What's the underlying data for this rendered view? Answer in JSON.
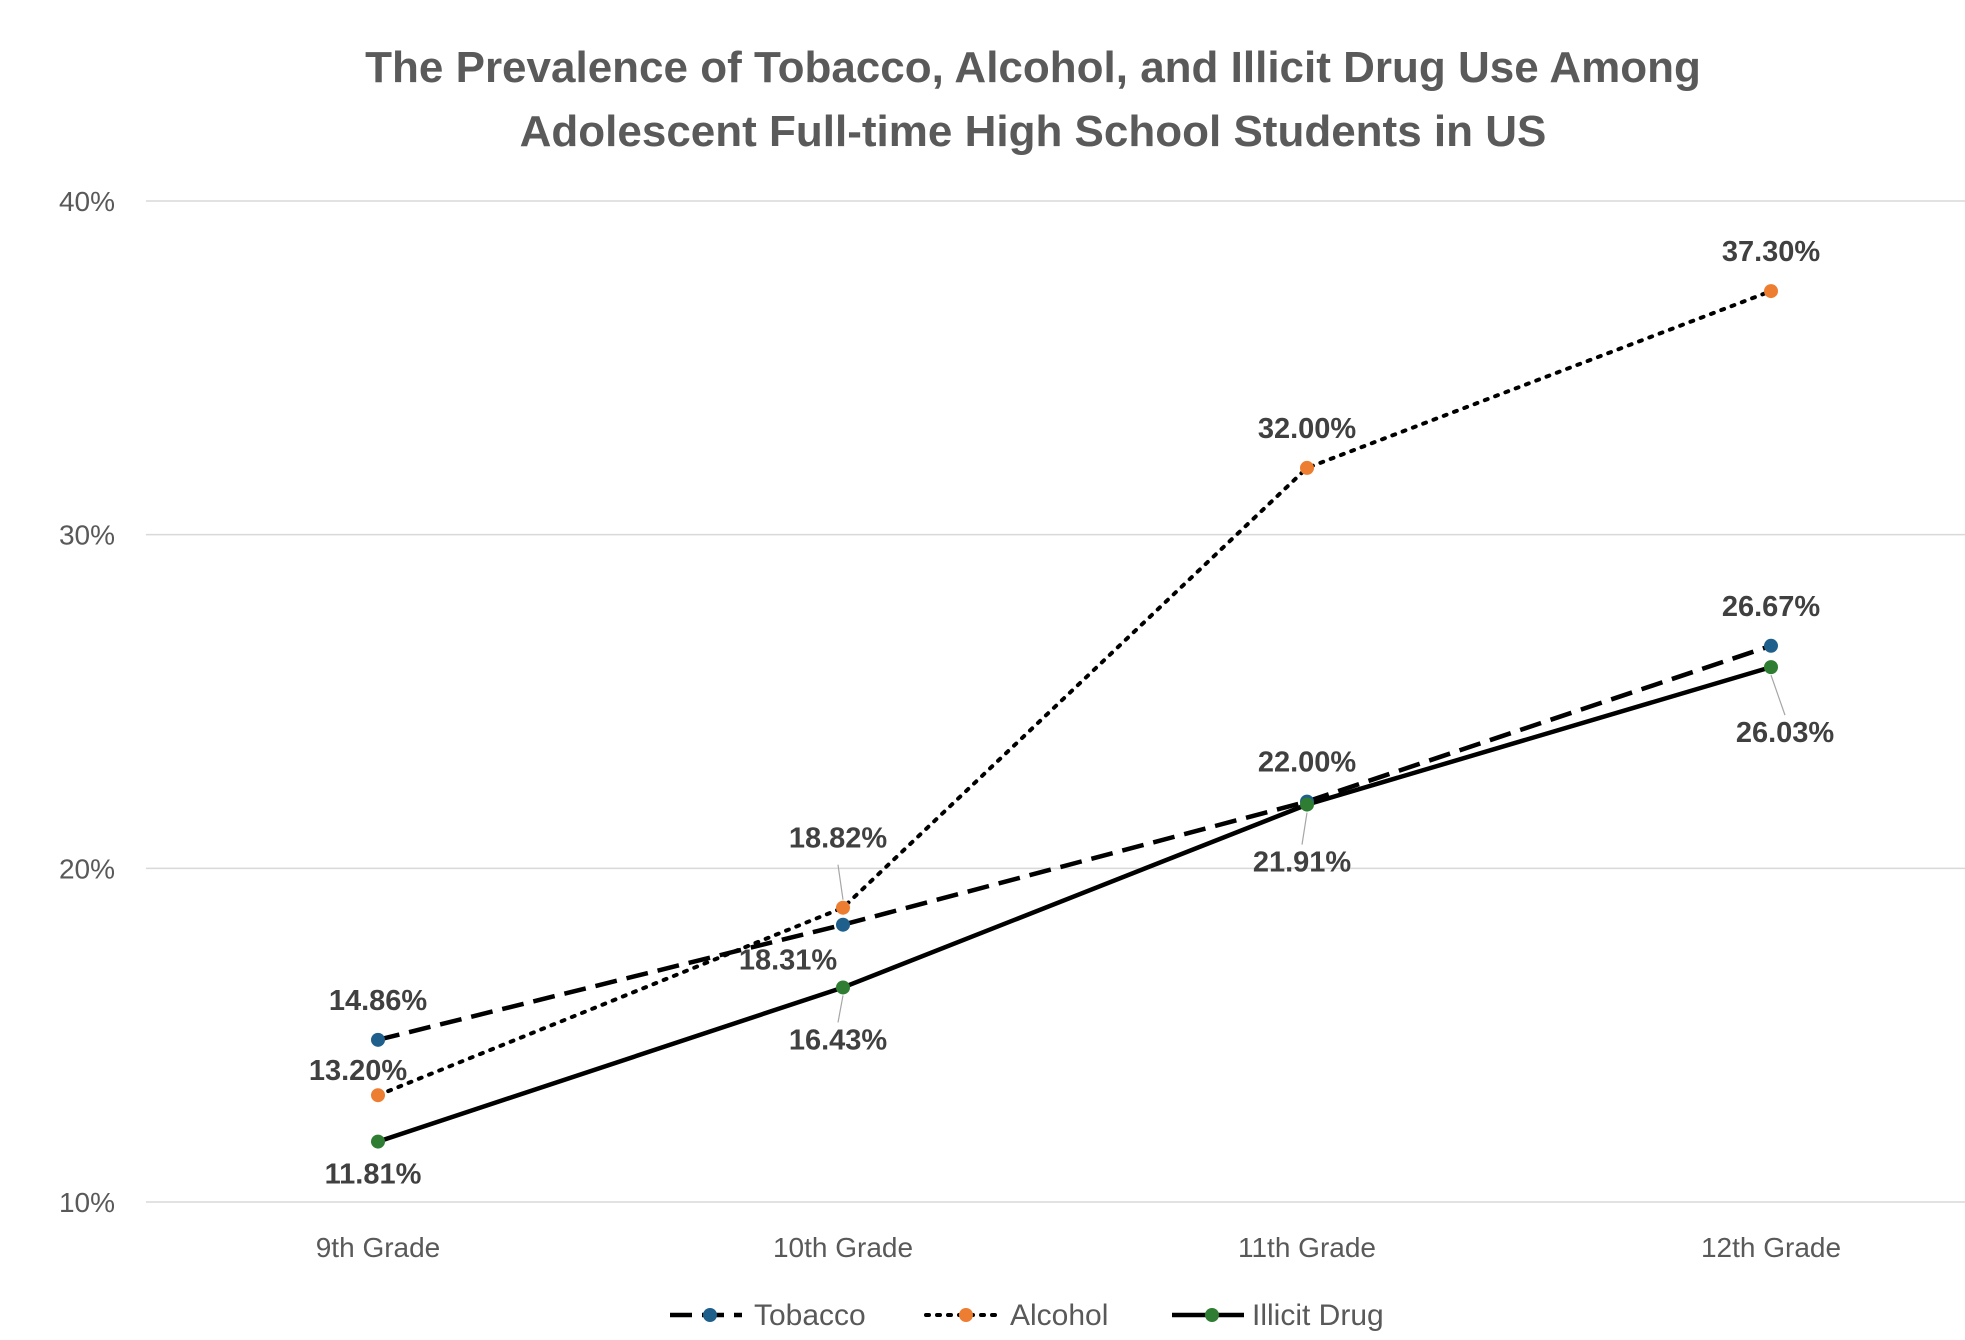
{
  "chart_data": {
    "type": "line",
    "title": [
      "The Prevalence of Tobacco, Alcohol, and Illicit Drug Use Among",
      "Adolescent Full-time High School Students in US"
    ],
    "categories": [
      "9th Grade",
      "10th Grade",
      "11th Grade",
      "12th Grade"
    ],
    "y_ticks": [
      {
        "value": 10,
        "label": "10%"
      },
      {
        "value": 20,
        "label": "20%"
      },
      {
        "value": 30,
        "label": "30%"
      },
      {
        "value": 40,
        "label": "40%"
      }
    ],
    "ylim": [
      10,
      40
    ],
    "grid": true,
    "legend_position": "bottom",
    "series": [
      {
        "name": "Tobacco",
        "line_style": "dashed",
        "line_color": "#000000",
        "marker_color": "#1f5f8b",
        "values": [
          14.86,
          18.31,
          22.0,
          26.67
        ],
        "labels": [
          "14.86%",
          "18.31%",
          "22.00%",
          "26.67%"
        ]
      },
      {
        "name": "Alcohol",
        "line_style": "dotted",
        "line_color": "#000000",
        "marker_color": "#ed7d31",
        "values": [
          13.2,
          18.82,
          32.0,
          37.3
        ],
        "labels": [
          "13.20%",
          "18.82%",
          "32.00%",
          "37.30%"
        ]
      },
      {
        "name": "Illicit Drug",
        "line_style": "solid",
        "line_color": "#000000",
        "marker_color": "#2e7d32",
        "values": [
          11.81,
          16.43,
          21.91,
          26.03
        ],
        "labels": [
          "11.81%",
          "16.43%",
          "21.91%",
          "26.03%"
        ]
      }
    ]
  }
}
